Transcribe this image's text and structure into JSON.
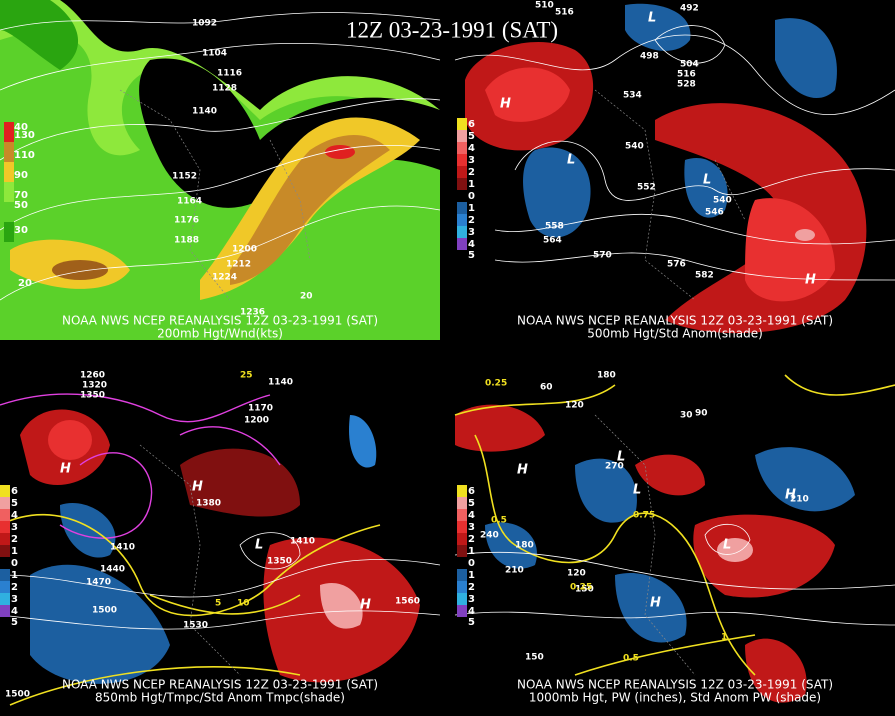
{
  "title": "12Z 03-23-1991 (SAT)",
  "panels": [
    {
      "caption": "NOAA NWS NCEP REANALYSIS 12Z 03-23-1991 (SAT)",
      "subtitle": "200mb Hgt/Wnd(kts)",
      "legend": [
        "40",
        "130",
        "110",
        "90",
        "70",
        "50",
        "30",
        "20"
      ],
      "contours": [
        "1092",
        "1104",
        "1116",
        "1128",
        "1140",
        "1152",
        "1164",
        "1176",
        "1188",
        "1200",
        "1212",
        "1224",
        "1236",
        "20"
      ]
    },
    {
      "caption": "NOAA NWS NCEP REANALYSIS 12Z 03-23-1991 (SAT)",
      "subtitle": "500mb Hgt/Std Anom(shade)",
      "legend": [
        "6",
        "5",
        "4",
        "3",
        "2",
        "1",
        "0",
        "1",
        "2",
        "3",
        "4",
        "5"
      ],
      "contours": [
        "516",
        "510",
        "492",
        "498",
        "504",
        "516",
        "528",
        "534",
        "540",
        "552",
        "546",
        "540",
        "558",
        "564",
        "570",
        "576",
        "582"
      ],
      "centers": [
        "H",
        "L",
        "L",
        "H",
        "L"
      ]
    },
    {
      "caption": "NOAA NWS NCEP REANALYSIS 12Z 03-23-1991 (SAT)",
      "subtitle": "850mb Hgt/Tmpc/Std Anom Tmpc(shade)",
      "legend": [
        "6",
        "5",
        "4",
        "3",
        "2",
        "1",
        "0",
        "1",
        "2",
        "3",
        "4",
        "5"
      ],
      "contours": [
        "1260",
        "1320",
        "1350",
        "1140",
        "1170",
        "1200",
        "1380",
        "1410",
        "1440",
        "1470",
        "1500",
        "1530",
        "1560",
        "1410",
        "1350",
        "25",
        "5",
        "10",
        "1500"
      ],
      "centers": [
        "H",
        "H",
        "L",
        "H"
      ]
    },
    {
      "caption": "NOAA NWS NCEP REANALYSIS 12Z 03-23-1991 (SAT)",
      "subtitle": "1000mb Hgt, PW (inches), Std Anom PW (shade)",
      "legend": [
        "6",
        "5",
        "4",
        "3",
        "2",
        "1",
        "0",
        "1",
        "2",
        "3",
        "4",
        "5"
      ],
      "contours": [
        "180",
        "120",
        "90",
        "30",
        "60",
        "270",
        "240",
        "210",
        "180",
        "150",
        "120",
        "0.25",
        "0.5",
        "0.75",
        "1",
        "210",
        "150",
        "0.25",
        "0.5"
      ],
      "centers": [
        "H",
        "L",
        "L",
        "H",
        "L",
        "H"
      ]
    }
  ]
}
